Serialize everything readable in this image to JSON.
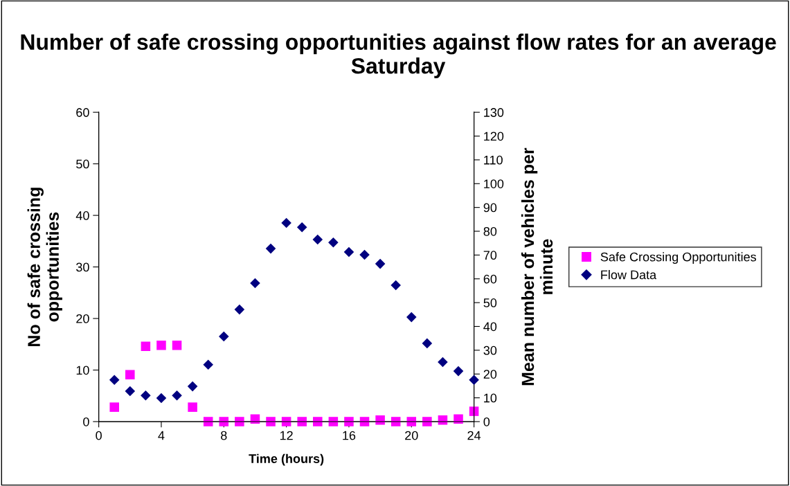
{
  "chart_data": {
    "type": "scatter",
    "title": "Number of safe crossing opportunities against flow rates for an average Saturday",
    "xlabel": "Time (hours)",
    "ylabel": "No of safe crossing opportunities",
    "y2label": "Mean number of vehicles per minute",
    "x": [
      1,
      2,
      3,
      4,
      5,
      6,
      7,
      8,
      9,
      10,
      11,
      12,
      13,
      14,
      15,
      16,
      17,
      18,
      19,
      20,
      21,
      22,
      23,
      24
    ],
    "series": [
      {
        "name": "Safe Crossing Opportunities",
        "color": "#ff00ff",
        "marker": "square",
        "values": [
          2.8,
          9.1,
          14.6,
          14.8,
          14.8,
          2.8,
          0,
          0,
          0,
          0.5,
          0,
          0,
          0,
          0,
          0,
          0,
          0,
          0.3,
          0,
          0,
          0,
          0.3,
          0.5,
          2.0
        ]
      },
      {
        "name": "Flow Data",
        "color": "#000080",
        "marker": "diamond",
        "axis": "y2",
        "values": [
          17.5,
          12.8,
          11,
          9.9,
          11,
          14.8,
          23.9,
          35.8,
          47.1,
          58.2,
          72.7,
          83.5,
          81.7,
          76.5,
          75.3,
          71.3,
          70.1,
          66.3,
          57.3,
          43.9,
          32.9,
          25,
          21.2,
          17.5
        ]
      }
    ],
    "xlim": [
      0,
      24
    ],
    "xticks": [
      0,
      4,
      8,
      12,
      16,
      20,
      24
    ],
    "ylim": [
      0,
      60
    ],
    "yticks": [
      0,
      10,
      20,
      30,
      40,
      50,
      60
    ],
    "y2lim": [
      0,
      130
    ],
    "y2ticks": [
      0,
      10,
      20,
      30,
      40,
      50,
      60,
      70,
      80,
      90,
      100,
      110,
      120,
      130
    ],
    "grid": false,
    "legend": "right"
  }
}
